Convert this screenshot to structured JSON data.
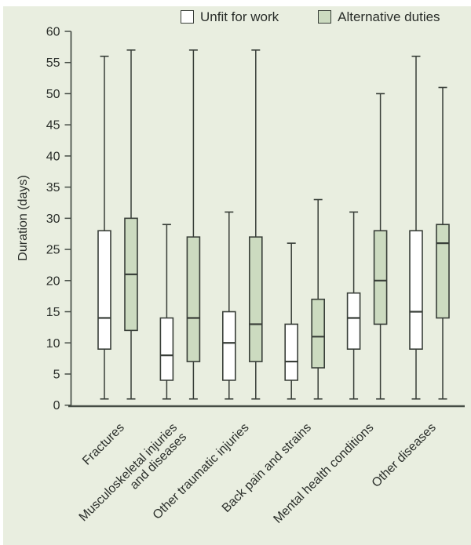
{
  "colors": {
    "page_background": "#ffffff",
    "panel_background": "#e9eee0",
    "box_stroke": "#383e38",
    "axis": "#454c45",
    "text": "#2a2e2a"
  },
  "chart_data": {
    "type": "boxplot",
    "title": "",
    "xlabel": "",
    "ylabel": "Duration (days)",
    "ylim": [
      0,
      60
    ],
    "ytick_step": 5,
    "grid": false,
    "legend_position": "top",
    "categories": [
      "Fractures",
      "Musculoskeletal injuries\nand diseases",
      "Other traumatic injuries",
      "Back pain and strains",
      "Mental health conditions",
      "Other diseases"
    ],
    "series": [
      {
        "name": "Unfit for work",
        "color": "#ffffff",
        "boxes": [
          {
            "low": 1,
            "q1": 9,
            "median": 14,
            "q3": 28,
            "high": 56
          },
          {
            "low": 1,
            "q1": 4,
            "median": 8,
            "q3": 14,
            "high": 29
          },
          {
            "low": 1,
            "q1": 4,
            "median": 10,
            "q3": 15,
            "high": 31
          },
          {
            "low": 1,
            "q1": 4,
            "median": 7,
            "q3": 13,
            "high": 26
          },
          {
            "low": 1,
            "q1": 9,
            "median": 14,
            "q3": 18,
            "high": 31
          },
          {
            "low": 1,
            "q1": 9,
            "median": 15,
            "q3": 28,
            "high": 56
          }
        ]
      },
      {
        "name": "Alternative duties",
        "color": "#ccdbc0",
        "boxes": [
          {
            "low": 1,
            "q1": 12,
            "median": 21,
            "q3": 30,
            "high": 57
          },
          {
            "low": 1,
            "q1": 7,
            "median": 14,
            "q3": 27,
            "high": 57
          },
          {
            "low": 1,
            "q1": 7,
            "median": 13,
            "q3": 27,
            "high": 57
          },
          {
            "low": 1,
            "q1": 6,
            "median": 11,
            "q3": 17,
            "high": 33
          },
          {
            "low": 1,
            "q1": 13,
            "median": 20,
            "q3": 28,
            "high": 50
          },
          {
            "low": 1,
            "q1": 14,
            "median": 26,
            "q3": 29,
            "high": 51
          }
        ]
      }
    ]
  }
}
